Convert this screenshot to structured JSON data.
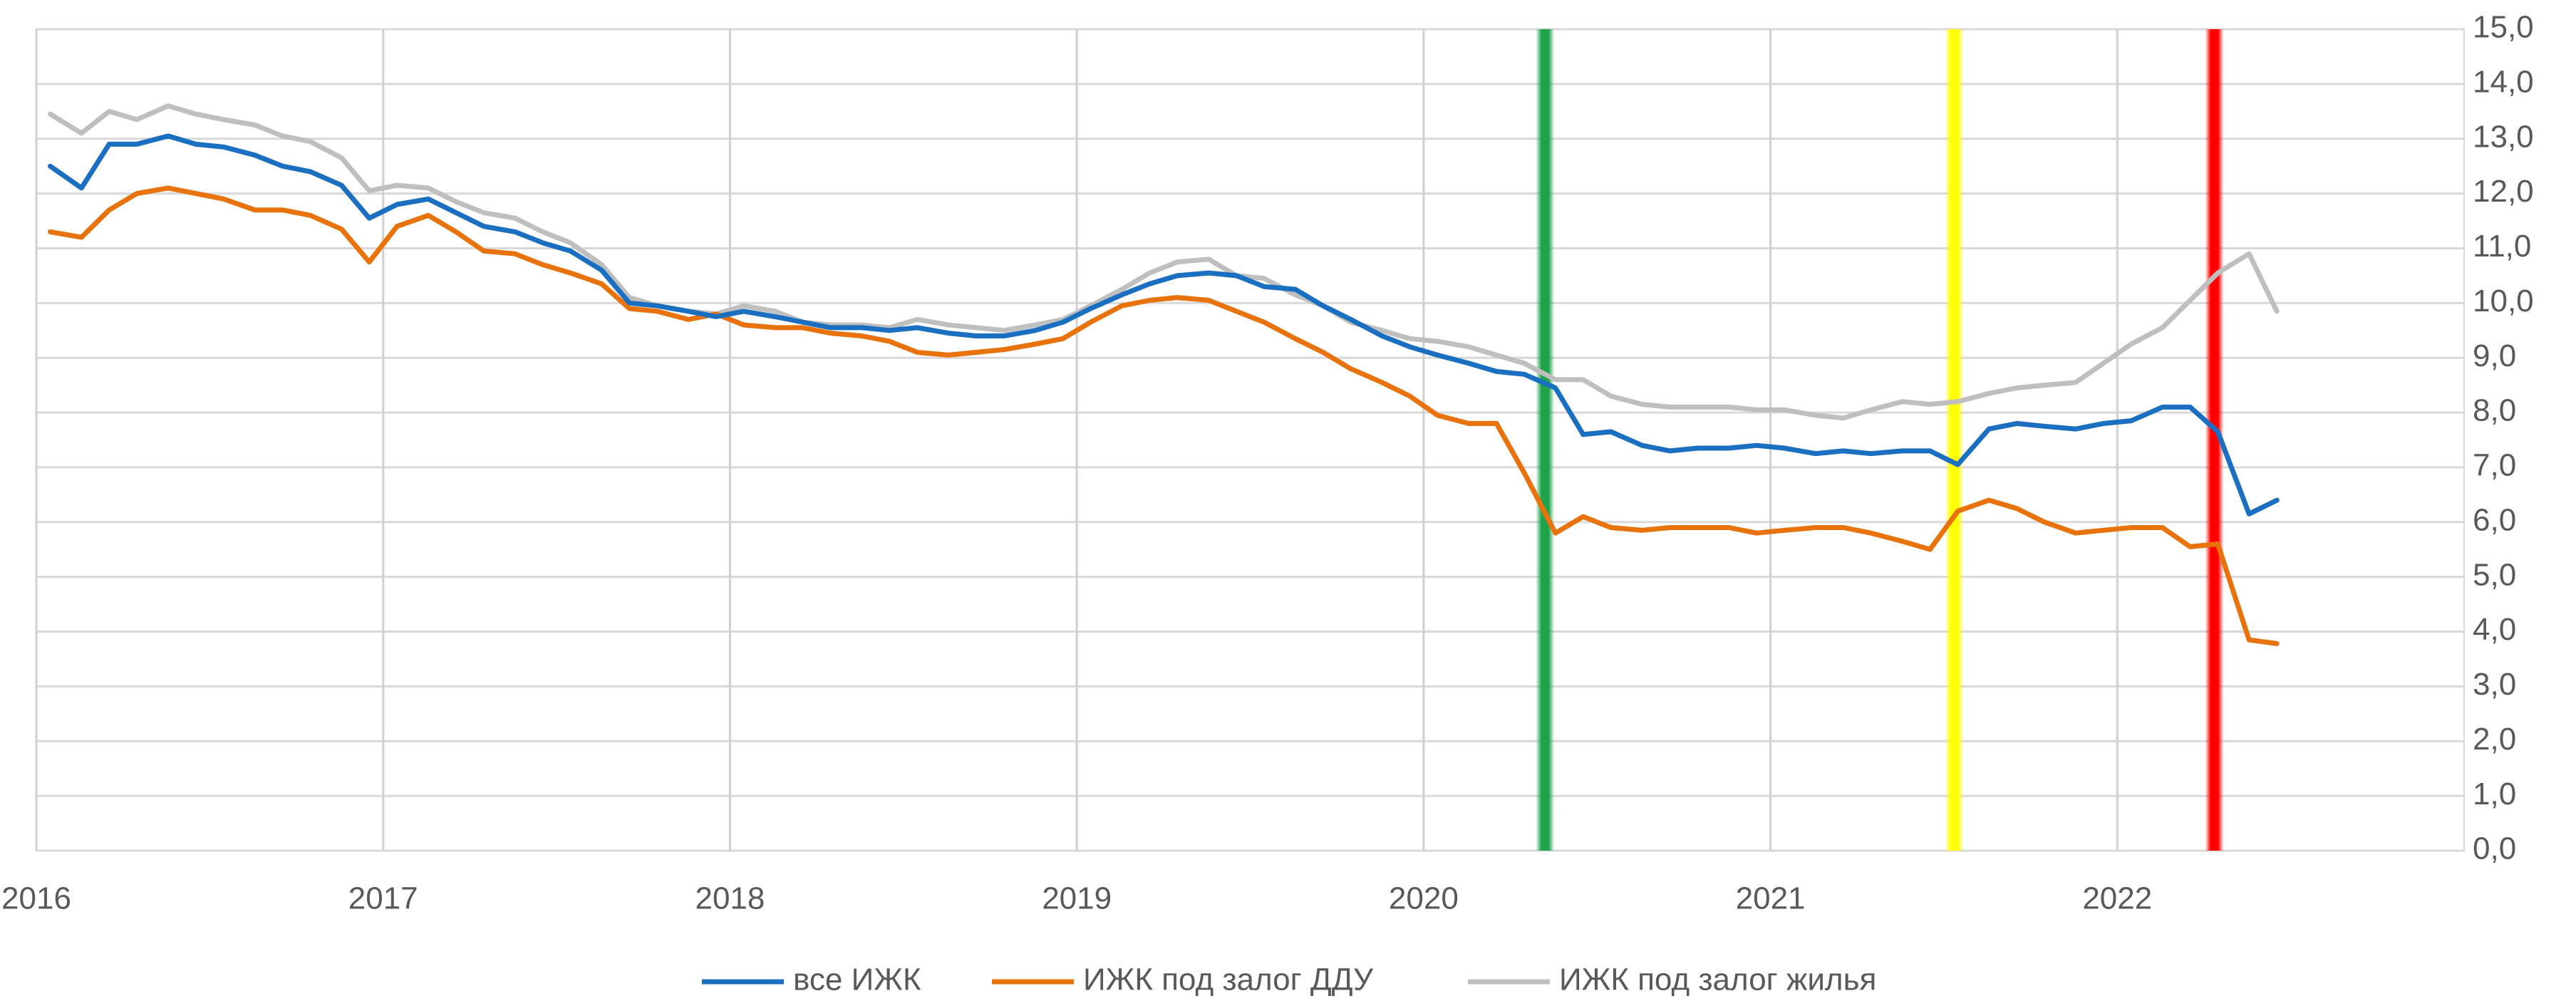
{
  "chart_data": {
    "type": "line",
    "x": [
      2016.04,
      2016.13,
      2016.21,
      2016.29,
      2016.38,
      2016.46,
      2016.54,
      2016.63,
      2016.71,
      2016.79,
      2016.88,
      2016.96,
      2017.04,
      2017.13,
      2017.21,
      2017.29,
      2017.38,
      2017.46,
      2017.54,
      2017.63,
      2017.71,
      2017.79,
      2017.88,
      2017.96,
      2018.04,
      2018.13,
      2018.21,
      2018.29,
      2018.38,
      2018.46,
      2018.54,
      2018.63,
      2018.71,
      2018.79,
      2018.88,
      2018.96,
      2019.04,
      2019.13,
      2019.21,
      2019.29,
      2019.38,
      2019.46,
      2019.54,
      2019.63,
      2019.71,
      2019.79,
      2019.88,
      2019.96,
      2020.04,
      2020.13,
      2020.21,
      2020.29,
      2020.38,
      2020.46,
      2020.54,
      2020.63,
      2020.71,
      2020.79,
      2020.88,
      2020.96,
      2021.04,
      2021.13,
      2021.21,
      2021.29,
      2021.38,
      2021.46,
      2021.54,
      2021.63,
      2021.71,
      2021.79,
      2021.88,
      2021.96,
      2022.04,
      2022.13,
      2022.21,
      2022.29,
      2022.38,
      2022.46
    ],
    "series": [
      {
        "name": "все ИЖК",
        "color": "#1a6fc0",
        "values": [
          12.5,
          12.1,
          12.9,
          12.9,
          13.05,
          12.9,
          12.85,
          12.7,
          12.5,
          12.4,
          12.15,
          11.55,
          11.8,
          11.9,
          11.65,
          11.4,
          11.3,
          11.1,
          10.95,
          10.6,
          10.0,
          9.95,
          9.85,
          9.75,
          9.85,
          9.75,
          9.65,
          9.55,
          9.55,
          9.5,
          9.55,
          9.45,
          9.4,
          9.4,
          9.5,
          9.65,
          9.9,
          10.15,
          10.35,
          10.5,
          10.55,
          10.5,
          10.3,
          10.25,
          9.95,
          9.7,
          9.4,
          9.2,
          9.05,
          8.9,
          8.75,
          8.7,
          8.45,
          7.6,
          7.65,
          7.4,
          7.3,
          7.35,
          7.35,
          7.4,
          7.35,
          7.25,
          7.3,
          7.25,
          7.3,
          7.3,
          7.05,
          7.7,
          7.8,
          7.75,
          7.7,
          7.8,
          7.85,
          8.1,
          8.1,
          7.65,
          6.15,
          6.4
        ]
      },
      {
        "name": "ИЖК под залог ДДУ",
        "color": "#e8730c",
        "values": [
          11.3,
          11.2,
          11.7,
          12.0,
          12.1,
          12.0,
          11.9,
          11.7,
          11.7,
          11.6,
          11.35,
          10.75,
          11.4,
          11.6,
          11.3,
          10.95,
          10.9,
          10.7,
          10.55,
          10.35,
          9.9,
          9.85,
          9.7,
          9.8,
          9.6,
          9.55,
          9.55,
          9.45,
          9.4,
          9.3,
          9.1,
          9.05,
          9.1,
          9.15,
          9.25,
          9.35,
          9.65,
          9.95,
          10.05,
          10.1,
          10.05,
          9.85,
          9.65,
          9.35,
          9.1,
          8.8,
          8.55,
          8.3,
          7.95,
          7.8,
          7.8,
          6.9,
          5.8,
          6.1,
          5.9,
          5.85,
          5.9,
          5.9,
          5.9,
          5.8,
          5.85,
          5.9,
          5.9,
          5.8,
          5.65,
          5.5,
          6.2,
          6.4,
          6.25,
          6.0,
          5.8,
          5.85,
          5.9,
          5.9,
          5.55,
          5.6,
          3.85,
          3.78
        ]
      },
      {
        "name": "ИЖК под залог жилья",
        "color": "#bfbfbf",
        "values": [
          13.45,
          13.1,
          13.5,
          13.35,
          13.6,
          13.45,
          13.35,
          13.25,
          13.05,
          12.95,
          12.65,
          12.05,
          12.15,
          12.1,
          11.85,
          11.65,
          11.55,
          11.3,
          11.1,
          10.7,
          10.1,
          9.95,
          9.85,
          9.8,
          9.95,
          9.85,
          9.65,
          9.6,
          9.6,
          9.55,
          9.7,
          9.6,
          9.55,
          9.5,
          9.6,
          9.7,
          9.95,
          10.25,
          10.55,
          10.75,
          10.8,
          10.5,
          10.45,
          10.15,
          9.95,
          9.65,
          9.5,
          9.35,
          9.3,
          9.2,
          9.05,
          8.9,
          8.6,
          8.6,
          8.3,
          8.15,
          8.1,
          8.1,
          8.1,
          8.05,
          8.05,
          7.95,
          7.9,
          8.05,
          8.2,
          8.15,
          8.2,
          8.35,
          8.45,
          8.5,
          8.55,
          8.9,
          9.25,
          9.55,
          10.05,
          10.55,
          10.9,
          9.85
        ]
      }
    ],
    "bands": [
      {
        "x": 2020.35,
        "color": "#1fa34a"
      },
      {
        "x": 2021.53,
        "color": "#ffff00"
      },
      {
        "x": 2022.28,
        "color": "#ff0000"
      }
    ],
    "xlim": [
      2016,
      2023
    ],
    "xticks": [
      2016,
      2017,
      2018,
      2019,
      2020,
      2021,
      2022
    ],
    "ylim": [
      0,
      15
    ],
    "yticks": [
      {
        "value": 0,
        "label": "0,0"
      },
      {
        "value": 1,
        "label": "1,0"
      },
      {
        "value": 2,
        "label": "2,0"
      },
      {
        "value": 3,
        "label": "3,0"
      },
      {
        "value": 4,
        "label": "4,0"
      },
      {
        "value": 5,
        "label": "5,0"
      },
      {
        "value": 6,
        "label": "6,0"
      },
      {
        "value": 7,
        "label": "7,0"
      },
      {
        "value": 8,
        "label": "8,0"
      },
      {
        "value": 9,
        "label": "9,0"
      },
      {
        "value": 10,
        "label": "10,0"
      },
      {
        "value": 11,
        "label": "11,0"
      },
      {
        "value": 12,
        "label": "12,0"
      },
      {
        "value": 13,
        "label": "13,0"
      },
      {
        "value": 14,
        "label": "14,0"
      },
      {
        "value": 15,
        "label": "15,0"
      }
    ],
    "grid": true,
    "legend": "bottom"
  }
}
